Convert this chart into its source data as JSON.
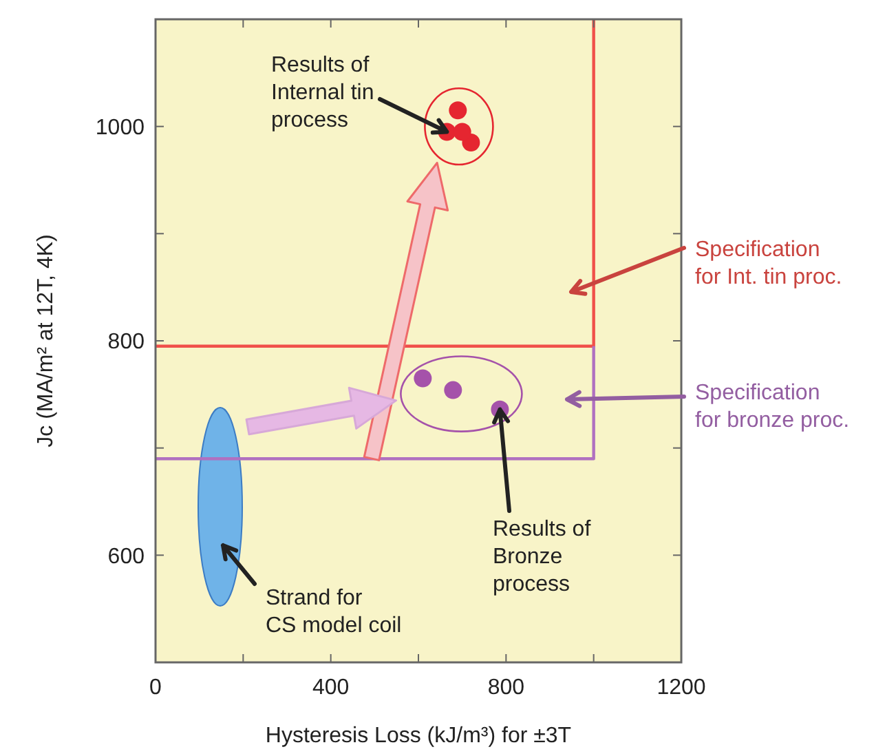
{
  "chart_data": {
    "type": "scatter",
    "xlabel": "Hysteresis Loss (kJ/m³) for ±3T",
    "ylabel": "Jc (MA/m² at 12T, 4K)",
    "xlim": [
      0,
      1200
    ],
    "xticks": [
      0,
      {
        "value": 200,
        "label": null
      },
      400,
      {
        "value": 600,
        "label": null
      },
      800,
      {
        "value": 1000,
        "label": null
      },
      1200
    ],
    "ylim": [
      500,
      1100
    ],
    "yticks": [
      {
        "value": 700,
        "label": null
      },
      600,
      800,
      {
        "value": 900,
        "label": null
      },
      1000
    ],
    "grid": false,
    "series": [
      {
        "color": "#e52630",
        "x": [
          690,
          665,
          720,
          700
        ],
        "values": [
          1015,
          995,
          985,
          995
        ]
      },
      {
        "color": "#a552aa",
        "x": [
          610,
          679,
          786
        ],
        "values": [
          765,
          754,
          736
        ]
      },
      {
        "type": "line",
        "color": "#f0504a",
        "x": [
          0,
          1000,
          1000
        ],
        "values": [
          795,
          795,
          1100
        ]
      },
      {
        "type": "line",
        "color": "#b070c0",
        "x": [
          0,
          1000,
          1000
        ],
        "values": [
          690,
          690,
          795
        ]
      }
    ],
    "annotations": [
      {
        "text": "Results of\nInternal tin\nprocess",
        "x": 665,
        "y": 995
      },
      "Specification\nfor Int. tin proc.",
      "Specification\nfor bronze proc.",
      {
        "text": "Results of\nBronze\nprocess",
        "x": 786,
        "y": 736
      },
      "Strand for\nCS model coil"
    ]
  }
}
